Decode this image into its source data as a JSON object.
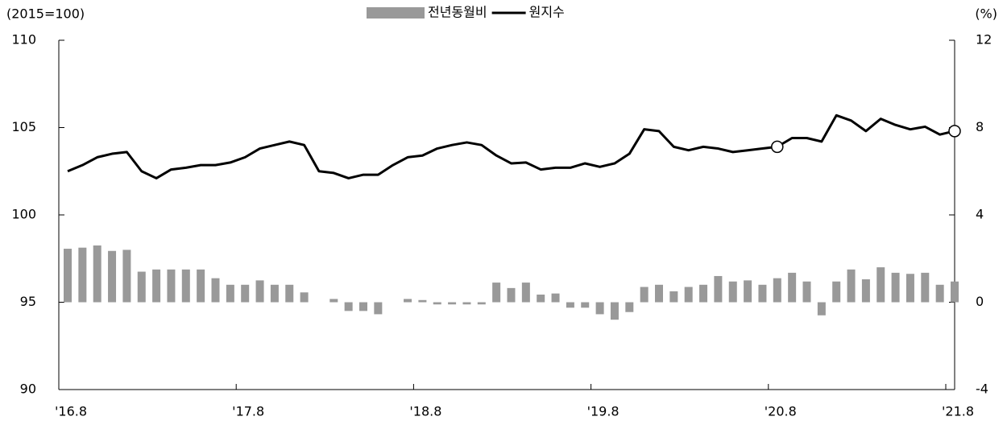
{
  "chart_data": {
    "type": "bar-line",
    "y_label": "(2015=100)",
    "y2_label": "(%)",
    "categories": [
      "'16.8",
      null,
      null,
      null,
      null,
      null,
      null,
      null,
      null,
      null,
      null,
      null,
      "'17.8",
      null,
      null,
      null,
      null,
      null,
      null,
      null,
      null,
      null,
      null,
      null,
      "'18.8",
      null,
      null,
      null,
      null,
      null,
      null,
      null,
      null,
      null,
      null,
      null,
      "'19.8",
      null,
      null,
      null,
      null,
      null,
      null,
      null,
      null,
      null,
      null,
      null,
      "'20.8",
      null,
      null,
      null,
      null,
      null,
      null,
      null,
      null,
      null,
      null,
      null,
      "'21.8"
    ],
    "series": [
      {
        "name": "전년동월비",
        "type": "bar",
        "axis": "y2",
        "color": "#999999",
        "values": [
          2.45,
          2.5,
          2.6,
          2.35,
          2.4,
          1.4,
          1.5,
          1.5,
          1.5,
          1.5,
          1.1,
          0.8,
          0.8,
          1.0,
          0.8,
          0.8,
          0.45,
          0,
          0.15,
          -0.4,
          -0.4,
          -0.55,
          0,
          0.15,
          0.1,
          -0.1,
          -0.1,
          -0.1,
          -0.1,
          0.9,
          0.65,
          0.9,
          0.35,
          0.4,
          -0.25,
          -0.25,
          -0.55,
          -0.8,
          -0.45,
          0.7,
          0.8,
          0.5,
          0.7,
          0.8,
          1.2,
          0.95,
          1.0,
          0.8,
          1.1,
          1.35,
          0.95,
          -0.6,
          0.95,
          1.5,
          1.05,
          1.6,
          1.35,
          1.3,
          1.35,
          0.8,
          0.95
        ]
      },
      {
        "name": "원지수",
        "type": "line",
        "axis": "y",
        "color": "#000000",
        "circled": [
          48,
          60
        ],
        "values": [
          102.5,
          102.85,
          103.3,
          103.5,
          103.6,
          102.5,
          102.1,
          102.6,
          102.7,
          102.85,
          102.85,
          103.0,
          103.3,
          103.8,
          104.0,
          104.2,
          104.0,
          102.5,
          102.4,
          102.1,
          102.3,
          102.3,
          102.85,
          103.3,
          103.4,
          103.8,
          104.0,
          104.15,
          104.0,
          103.4,
          102.95,
          103.0,
          102.6,
          102.7,
          102.7,
          102.95,
          102.75,
          102.95,
          103.5,
          104.9,
          104.8,
          103.9,
          103.7,
          103.9,
          103.8,
          103.6,
          103.7,
          103.8,
          103.9,
          104.4,
          104.4,
          104.2,
          105.7,
          105.4,
          104.8,
          105.5,
          105.15,
          104.9,
          105.05,
          104.6,
          104.8
        ]
      }
    ],
    "ylim": [
      90,
      110
    ],
    "yticks": [
      90,
      95,
      100,
      105,
      110
    ],
    "y2lim": [
      -4,
      12
    ],
    "y2ticks": [
      -4,
      0,
      4,
      8,
      12
    ]
  }
}
